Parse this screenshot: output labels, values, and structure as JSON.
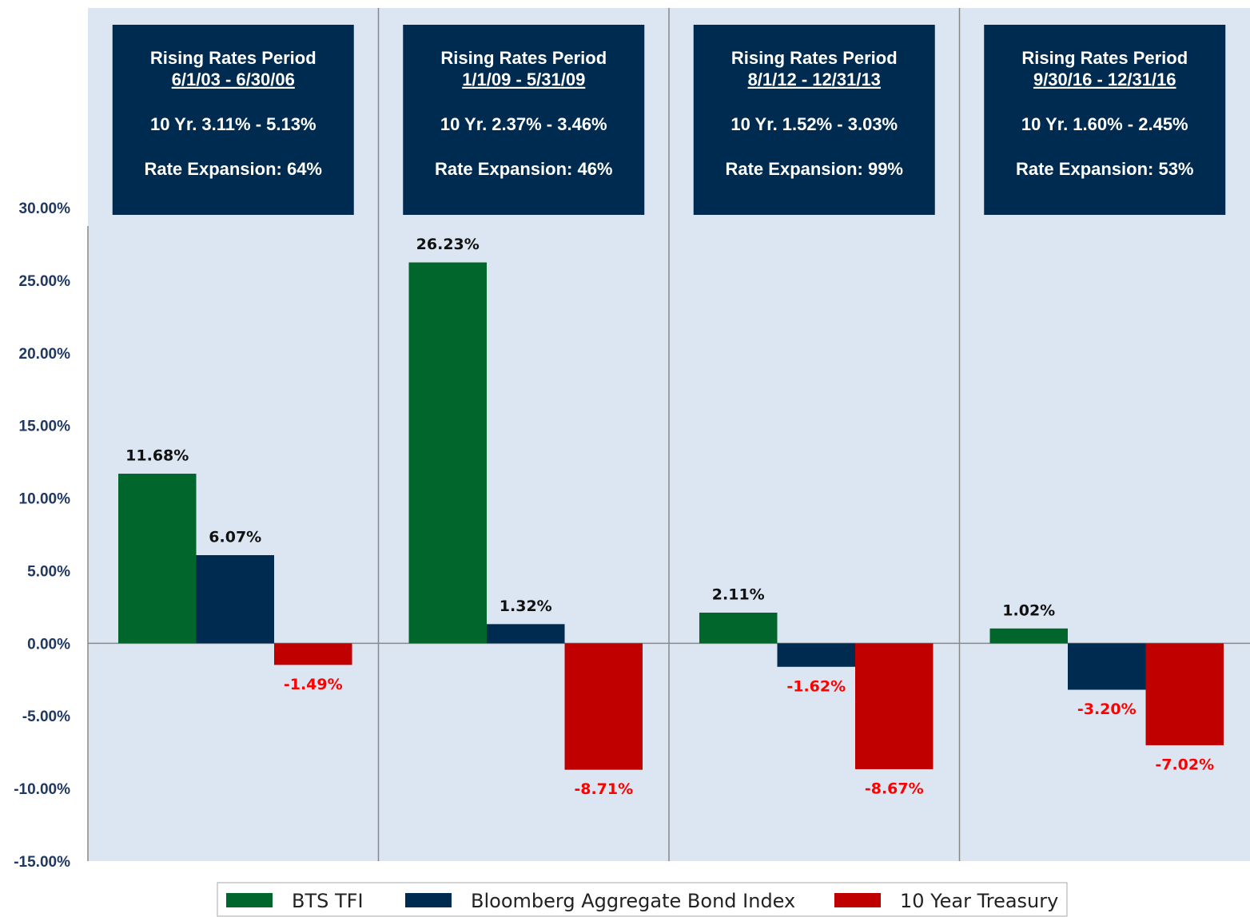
{
  "chart_data": {
    "type": "bar",
    "categories": [
      null,
      null,
      null,
      null
    ],
    "annotations": [
      {
        "title": "Rising Rates Period",
        "period": "6/1/03 - 6/30/06",
        "range": "10 Yr. 3.11% - 5.13%",
        "expansion": "Rate Expansion: 64%"
      },
      {
        "title": "Rising Rates Period",
        "period": "1/1/09 - 5/31/09",
        "range": "10 Yr. 2.37% - 3.46%",
        "expansion": "Rate Expansion: 46%"
      },
      {
        "title": "Rising Rates Period",
        "period": "8/1/12 - 12/31/13",
        "range": "10 Yr. 1.52% - 3.03%",
        "expansion": "Rate Expansion: 99%"
      },
      {
        "title": "Rising Rates Period",
        "period": "9/30/16 - 12/31/16",
        "range": "10 Yr. 1.60% - 2.45%",
        "expansion": "Rate Expansion: 53%"
      }
    ],
    "series": [
      {
        "name": "BTS TFI",
        "color": "#00662c",
        "values": [
          11.68,
          26.23,
          2.11,
          1.02
        ],
        "value_labels": [
          "11.68%",
          "26.23%",
          "2.11%",
          "1.02%"
        ]
      },
      {
        "name": "Bloomberg Aggregate Bond Index",
        "color": "#002b50",
        "values": [
          6.07,
          1.32,
          -1.62,
          -3.2
        ],
        "value_labels": [
          "6.07%",
          "1.32%",
          "-1.62%",
          "-3.20%"
        ]
      },
      {
        "name": "10 Year Treasury",
        "color": "#c00000",
        "values": [
          -1.49,
          -8.71,
          -8.67,
          -7.02
        ],
        "value_labels": [
          "-1.49%",
          "-8.71%",
          "-8.67%",
          "-7.02%"
        ]
      }
    ],
    "ylim": [
      -15,
      30
    ],
    "yticks": [
      {
        "value": -15,
        "label": "-15.00%"
      },
      {
        "value": -10,
        "label": "-10.00%"
      },
      {
        "value": -5,
        "label": "-5.00%"
      },
      {
        "value": 0,
        "label": "0.00%"
      },
      {
        "value": 5,
        "label": "5.00%"
      },
      {
        "value": 10,
        "label": "10.00%"
      },
      {
        "value": 15,
        "label": "15.00%"
      },
      {
        "value": 20,
        "label": "20.00%"
      },
      {
        "value": 25,
        "label": "25.00%"
      },
      {
        "value": 30,
        "label": "30.00%"
      }
    ],
    "legend": "bottom"
  }
}
